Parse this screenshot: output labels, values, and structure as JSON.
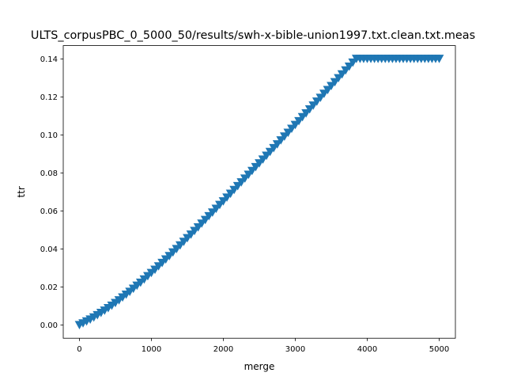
{
  "chart_data": {
    "type": "line",
    "title": "ULTS_corpusPBC_0_5000_50/results/swh-x-bible-union1997.txt.clean.txt.meas",
    "xlabel": "merge",
    "ylabel": "ttr",
    "xlim": [
      -225,
      5225
    ],
    "ylim": [
      -0.007,
      0.147
    ],
    "xticks": [
      0,
      1000,
      2000,
      3000,
      4000,
      5000
    ],
    "xtick_labels": [
      "0",
      "1000",
      "2000",
      "3000",
      "4000",
      "5000"
    ],
    "yticks": [
      0.0,
      0.02,
      0.04,
      0.06,
      0.08,
      0.1,
      0.12,
      0.14
    ],
    "ytick_labels": [
      "0.00",
      "0.02",
      "0.04",
      "0.06",
      "0.08",
      "0.10",
      "0.12",
      "0.14"
    ],
    "grid": false,
    "marker": "triangle_down",
    "series": [
      {
        "name": "ttr",
        "color": "#1f77b4",
        "x": [
          0,
          50,
          100,
          150,
          200,
          250,
          300,
          350,
          400,
          450,
          500,
          550,
          600,
          650,
          700,
          750,
          800,
          850,
          900,
          950,
          1000,
          1050,
          1100,
          1150,
          1200,
          1250,
          1300,
          1350,
          1400,
          1450,
          1500,
          1550,
          1600,
          1650,
          1700,
          1750,
          1800,
          1850,
          1900,
          1950,
          2000,
          2050,
          2100,
          2150,
          2200,
          2250,
          2300,
          2350,
          2400,
          2450,
          2500,
          2550,
          2600,
          2650,
          2700,
          2750,
          2800,
          2850,
          2900,
          2950,
          3000,
          3050,
          3100,
          3150,
          3200,
          3250,
          3300,
          3350,
          3400,
          3450,
          3500,
          3550,
          3600,
          3650,
          3700,
          3750,
          3800,
          3850,
          3900,
          3950,
          4000,
          4050,
          4100,
          4150,
          4200,
          4250,
          4300,
          4350,
          4400,
          4450,
          4500,
          4550,
          4600,
          4650,
          4700,
          4750,
          4800,
          4850,
          4900,
          4950,
          5000
        ],
        "values": [
          0.0002,
          0.0011,
          0.0021,
          0.0031,
          0.0042,
          0.0054,
          0.0066,
          0.0078,
          0.0091,
          0.0104,
          0.0118,
          0.0132,
          0.0147,
          0.0162,
          0.0177,
          0.0193,
          0.0209,
          0.0225,
          0.0242,
          0.0259,
          0.0276,
          0.0293,
          0.0311,
          0.0329,
          0.0347,
          0.0365,
          0.0384,
          0.0402,
          0.0421,
          0.044,
          0.0459,
          0.0478,
          0.0497,
          0.0516,
          0.0536,
          0.0555,
          0.0575,
          0.0594,
          0.0614,
          0.0634,
          0.0653,
          0.0673,
          0.0693,
          0.0713,
          0.0733,
          0.0753,
          0.0773,
          0.0793,
          0.0813,
          0.0833,
          0.0853,
          0.0873,
          0.0893,
          0.0913,
          0.0933,
          0.0953,
          0.0974,
          0.0994,
          0.1014,
          0.1035,
          0.1055,
          0.1075,
          0.1096,
          0.1116,
          0.1137,
          0.1157,
          0.1178,
          0.1198,
          0.1219,
          0.1239,
          0.126,
          0.128,
          0.1301,
          0.1321,
          0.1342,
          0.1362,
          0.1383,
          0.1403,
          0.1403,
          0.1403,
          0.1403,
          0.1403,
          0.1403,
          0.1403,
          0.1403,
          0.1403,
          0.1403,
          0.1403,
          0.1403,
          0.1403,
          0.1403,
          0.1403,
          0.1403,
          0.1403,
          0.1403,
          0.1403,
          0.1403,
          0.1403,
          0.1403,
          0.1403,
          0.1403
        ]
      }
    ]
  }
}
